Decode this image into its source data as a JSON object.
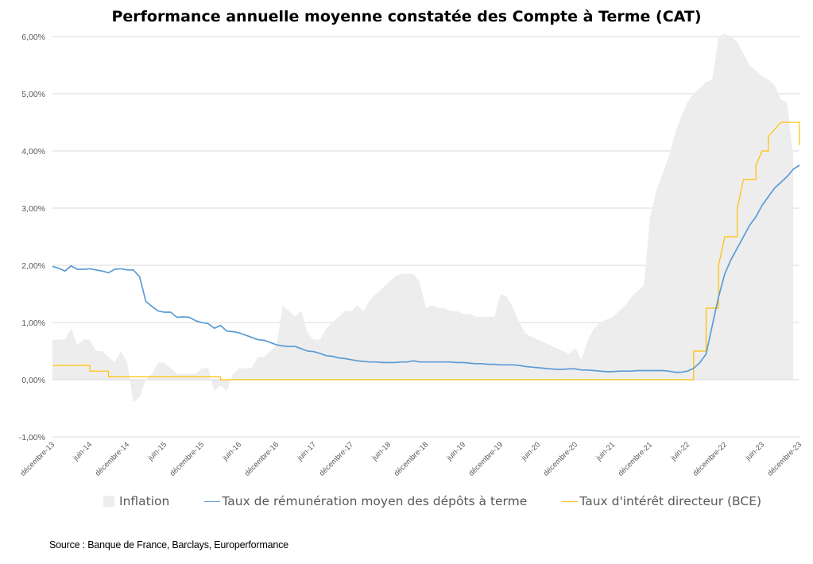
{
  "chart_data": {
    "type": "line",
    "title": "Performance annuelle moyenne constatée des Compte à Terme (CAT)",
    "xlabel": "",
    "ylabel": "",
    "ylim": [
      -1,
      6
    ],
    "y_ticks": [
      "-1,00%",
      "0,00%",
      "1,00%",
      "2,00%",
      "3,00%",
      "4,00%",
      "5,00%",
      "6,00%"
    ],
    "x_range": [
      "2013-12",
      "2023-12"
    ],
    "x_ticks": [
      {
        "label": "décembre-13",
        "date": "2013-12"
      },
      {
        "label": "juin-14",
        "date": "2014-06"
      },
      {
        "label": "décembre-14",
        "date": "2014-12"
      },
      {
        "label": "juin-15",
        "date": "2015-06"
      },
      {
        "label": "décembre-15",
        "date": "2015-12"
      },
      {
        "label": "juin-16",
        "date": "2016-06"
      },
      {
        "label": "décembre-16",
        "date": "2016-12"
      },
      {
        "label": "juin-17",
        "date": "2017-06"
      },
      {
        "label": "décembre-17",
        "date": "2017-12"
      },
      {
        "label": "juin-18",
        "date": "2018-06"
      },
      {
        "label": "décembre-18",
        "date": "2018-12"
      },
      {
        "label": "juin-19",
        "date": "2019-06"
      },
      {
        "label": "décembre-19",
        "date": "2019-12"
      },
      {
        "label": "juin-20",
        "date": "2020-06"
      },
      {
        "label": "décembre-20",
        "date": "2020-12"
      },
      {
        "label": "juin-21",
        "date": "2021-06"
      },
      {
        "label": "décembre-21",
        "date": "2021-12"
      },
      {
        "label": "juin-22",
        "date": "2022-06"
      },
      {
        "label": "décembre-22",
        "date": "2022-12"
      },
      {
        "label": "juin-23",
        "date": "2023-06"
      },
      {
        "label": "décembre-23",
        "date": "2023-12"
      }
    ],
    "grid": "horizontal",
    "legend_position": "bottom",
    "series": [
      {
        "name": "Inflation",
        "type": "area",
        "color": "#ededed",
        "points": [
          [
            "2013-12",
            0.7
          ],
          [
            "2014-02",
            0.7
          ],
          [
            "2014-03",
            0.9
          ],
          [
            "2014-04",
            0.6
          ],
          [
            "2014-05",
            0.7
          ],
          [
            "2014-06",
            0.7
          ],
          [
            "2014-07",
            0.5
          ],
          [
            "2014-08",
            0.5
          ],
          [
            "2014-10",
            0.3
          ],
          [
            "2014-11",
            0.5
          ],
          [
            "2014-12",
            0.3
          ],
          [
            "2015-01",
            -0.4
          ],
          [
            "2015-02",
            -0.3
          ],
          [
            "2015-03",
            0.0
          ],
          [
            "2015-04",
            0.1
          ],
          [
            "2015-05",
            0.3
          ],
          [
            "2015-06",
            0.3
          ],
          [
            "2015-07",
            0.2
          ],
          [
            "2015-08",
            0.1
          ],
          [
            "2015-09",
            0.1
          ],
          [
            "2015-10",
            0.1
          ],
          [
            "2015-11",
            0.1
          ],
          [
            "2015-12",
            0.2
          ],
          [
            "2016-01",
            0.2
          ],
          [
            "2016-02",
            -0.2
          ],
          [
            "2016-03",
            -0.1
          ],
          [
            "2016-04",
            -0.2
          ],
          [
            "2016-05",
            0.1
          ],
          [
            "2016-06",
            0.2
          ],
          [
            "2016-07",
            0.2
          ],
          [
            "2016-08",
            0.2
          ],
          [
            "2016-09",
            0.4
          ],
          [
            "2016-10",
            0.4
          ],
          [
            "2016-11",
            0.5
          ],
          [
            "2016-12",
            0.6
          ],
          [
            "2017-01",
            1.3
          ],
          [
            "2017-02",
            1.2
          ],
          [
            "2017-03",
            1.1
          ],
          [
            "2017-04",
            1.2
          ],
          [
            "2017-05",
            0.8
          ],
          [
            "2017-06",
            0.7
          ],
          [
            "2017-07",
            0.7
          ],
          [
            "2017-08",
            0.9
          ],
          [
            "2017-09",
            1.0
          ],
          [
            "2017-10",
            1.1
          ],
          [
            "2017-11",
            1.2
          ],
          [
            "2017-12",
            1.2
          ],
          [
            "2018-01",
            1.3
          ],
          [
            "2018-02",
            1.2
          ],
          [
            "2018-03",
            1.4
          ],
          [
            "2018-04",
            1.5
          ],
          [
            "2018-05",
            1.6
          ],
          [
            "2018-06",
            1.7
          ],
          [
            "2018-07",
            1.8
          ],
          [
            "2018-08",
            1.85
          ],
          [
            "2018-09",
            1.85
          ],
          [
            "2018-10",
            1.85
          ],
          [
            "2018-11",
            1.7
          ],
          [
            "2018-12",
            1.25
          ],
          [
            "2019-01",
            1.3
          ],
          [
            "2019-02",
            1.25
          ],
          [
            "2019-03",
            1.25
          ],
          [
            "2019-04",
            1.2
          ],
          [
            "2019-05",
            1.2
          ],
          [
            "2019-06",
            1.15
          ],
          [
            "2019-07",
            1.15
          ],
          [
            "2019-08",
            1.1
          ],
          [
            "2019-09",
            1.1
          ],
          [
            "2019-10",
            1.1
          ],
          [
            "2019-11",
            1.1
          ],
          [
            "2019-12",
            1.5
          ],
          [
            "2020-01",
            1.45
          ],
          [
            "2020-02",
            1.25
          ],
          [
            "2020-03",
            1.0
          ],
          [
            "2020-04",
            0.8
          ],
          [
            "2020-05",
            0.75
          ],
          [
            "2020-06",
            0.7
          ],
          [
            "2020-07",
            0.65
          ],
          [
            "2020-08",
            0.6
          ],
          [
            "2020-09",
            0.55
          ],
          [
            "2020-10",
            0.5
          ],
          [
            "2020-11",
            0.45
          ],
          [
            "2020-12",
            0.55
          ],
          [
            "2021-01",
            0.35
          ],
          [
            "2021-02",
            0.7
          ],
          [
            "2021-03",
            0.9
          ],
          [
            "2021-04",
            1.0
          ],
          [
            "2021-05",
            1.05
          ],
          [
            "2021-06",
            1.1
          ],
          [
            "2021-07",
            1.2
          ],
          [
            "2021-08",
            1.3
          ],
          [
            "2021-09",
            1.45
          ],
          [
            "2021-10",
            1.55
          ],
          [
            "2021-11",
            1.65
          ],
          [
            "2021-12",
            2.85
          ],
          [
            "2022-01",
            3.3
          ],
          [
            "2022-02",
            3.6
          ],
          [
            "2022-03",
            3.9
          ],
          [
            "2022-04",
            4.3
          ],
          [
            "2022-05",
            4.6
          ],
          [
            "2022-06",
            4.85
          ],
          [
            "2022-07",
            5.0
          ],
          [
            "2022-08",
            5.1
          ],
          [
            "2022-09",
            5.2
          ],
          [
            "2022-10",
            5.25
          ],
          [
            "2022-11",
            6.0
          ],
          [
            "2022-12",
            6.05
          ],
          [
            "2023-01",
            6.0
          ],
          [
            "2023-02",
            5.9
          ],
          [
            "2023-03",
            5.7
          ],
          [
            "2023-04",
            5.5
          ],
          [
            "2023-05",
            5.4
          ],
          [
            "2023-06",
            5.3
          ],
          [
            "2023-07",
            5.25
          ],
          [
            "2023-08",
            5.15
          ],
          [
            "2023-09",
            4.9
          ],
          [
            "2023-10",
            4.85
          ],
          [
            "2023-11",
            3.9
          ]
        ]
      },
      {
        "name": "Taux de rémunération moyen des dépôts à terme",
        "type": "line",
        "color": "#5b9bd5",
        "points": [
          [
            "2013-12",
            1.98
          ],
          [
            "2014-01",
            1.95
          ],
          [
            "2014-02",
            1.9
          ],
          [
            "2014-03",
            1.99
          ],
          [
            "2014-04",
            1.93
          ],
          [
            "2014-05",
            1.93
          ],
          [
            "2014-06",
            1.94
          ],
          [
            "2014-07",
            1.92
          ],
          [
            "2014-08",
            1.9
          ],
          [
            "2014-09",
            1.87
          ],
          [
            "2014-10",
            1.93
          ],
          [
            "2014-11",
            1.94
          ],
          [
            "2014-12",
            1.92
          ],
          [
            "2015-01",
            1.92
          ],
          [
            "2015-02",
            1.8
          ],
          [
            "2015-03",
            1.37
          ],
          [
            "2015-04",
            1.28
          ],
          [
            "2015-05",
            1.2
          ],
          [
            "2015-06",
            1.18
          ],
          [
            "2015-07",
            1.18
          ],
          [
            "2015-08",
            1.09
          ],
          [
            "2015-09",
            1.1
          ],
          [
            "2015-10",
            1.09
          ],
          [
            "2015-11",
            1.03
          ],
          [
            "2015-12",
            1.0
          ],
          [
            "2016-01",
            0.98
          ],
          [
            "2016-02",
            0.9
          ],
          [
            "2016-03",
            0.95
          ],
          [
            "2016-04",
            0.85
          ],
          [
            "2016-05",
            0.84
          ],
          [
            "2016-06",
            0.82
          ],
          [
            "2016-07",
            0.78
          ],
          [
            "2016-08",
            0.74
          ],
          [
            "2016-09",
            0.7
          ],
          [
            "2016-10",
            0.69
          ],
          [
            "2016-11",
            0.65
          ],
          [
            "2016-12",
            0.61
          ],
          [
            "2017-01",
            0.59
          ],
          [
            "2017-02",
            0.58
          ],
          [
            "2017-03",
            0.58
          ],
          [
            "2017-04",
            0.54
          ],
          [
            "2017-05",
            0.5
          ],
          [
            "2017-06",
            0.49
          ],
          [
            "2017-07",
            0.46
          ],
          [
            "2017-08",
            0.42
          ],
          [
            "2017-09",
            0.41
          ],
          [
            "2017-10",
            0.38
          ],
          [
            "2017-11",
            0.37
          ],
          [
            "2017-12",
            0.35
          ],
          [
            "2018-01",
            0.33
          ],
          [
            "2018-02",
            0.32
          ],
          [
            "2018-03",
            0.31
          ],
          [
            "2018-04",
            0.31
          ],
          [
            "2018-05",
            0.3
          ],
          [
            "2018-06",
            0.3
          ],
          [
            "2018-07",
            0.3
          ],
          [
            "2018-08",
            0.31
          ],
          [
            "2018-09",
            0.31
          ],
          [
            "2018-10",
            0.33
          ],
          [
            "2018-11",
            0.31
          ],
          [
            "2018-12",
            0.31
          ],
          [
            "2019-01",
            0.31
          ],
          [
            "2019-02",
            0.31
          ],
          [
            "2019-03",
            0.31
          ],
          [
            "2019-04",
            0.31
          ],
          [
            "2019-05",
            0.3
          ],
          [
            "2019-06",
            0.3
          ],
          [
            "2019-07",
            0.29
          ],
          [
            "2019-08",
            0.28
          ],
          [
            "2019-09",
            0.28
          ],
          [
            "2019-10",
            0.27
          ],
          [
            "2019-11",
            0.27
          ],
          [
            "2019-12",
            0.26
          ],
          [
            "2020-01",
            0.26
          ],
          [
            "2020-02",
            0.26
          ],
          [
            "2020-03",
            0.25
          ],
          [
            "2020-04",
            0.23
          ],
          [
            "2020-05",
            0.22
          ],
          [
            "2020-06",
            0.21
          ],
          [
            "2020-07",
            0.2
          ],
          [
            "2020-08",
            0.19
          ],
          [
            "2020-09",
            0.18
          ],
          [
            "2020-10",
            0.18
          ],
          [
            "2020-11",
            0.19
          ],
          [
            "2020-12",
            0.19
          ],
          [
            "2021-01",
            0.17
          ],
          [
            "2021-02",
            0.17
          ],
          [
            "2021-03",
            0.16
          ],
          [
            "2021-04",
            0.15
          ],
          [
            "2021-05",
            0.14
          ],
          [
            "2021-06",
            0.14
          ],
          [
            "2021-07",
            0.15
          ],
          [
            "2021-08",
            0.15
          ],
          [
            "2021-09",
            0.15
          ],
          [
            "2021-10",
            0.16
          ],
          [
            "2021-11",
            0.16
          ],
          [
            "2021-12",
            0.16
          ],
          [
            "2022-01",
            0.16
          ],
          [
            "2022-02",
            0.16
          ],
          [
            "2022-03",
            0.15
          ],
          [
            "2022-04",
            0.13
          ],
          [
            "2022-05",
            0.13
          ],
          [
            "2022-06",
            0.15
          ],
          [
            "2022-07",
            0.2
          ],
          [
            "2022-08",
            0.3
          ],
          [
            "2022-09",
            0.45
          ],
          [
            "2022-10",
            0.95
          ],
          [
            "2022-11",
            1.45
          ],
          [
            "2022-12",
            1.85
          ],
          [
            "2023-01",
            2.1
          ],
          [
            "2023-02",
            2.3
          ],
          [
            "2023-03",
            2.5
          ],
          [
            "2023-04",
            2.7
          ],
          [
            "2023-05",
            2.85
          ],
          [
            "2023-06",
            3.05
          ],
          [
            "2023-07",
            3.2
          ],
          [
            "2023-08",
            3.35
          ],
          [
            "2023-09",
            3.45
          ],
          [
            "2023-10",
            3.55
          ],
          [
            "2023-11",
            3.68
          ],
          [
            "2023-12",
            3.75
          ]
        ]
      },
      {
        "name": "Taux d'intérêt directeur (BCE)",
        "type": "step",
        "color": "#ffc000",
        "points": [
          [
            "2013-12",
            0.25
          ],
          [
            "2014-06",
            0.25
          ],
          [
            "2014-06",
            0.15
          ],
          [
            "2014-09",
            0.15
          ],
          [
            "2014-09",
            0.05
          ],
          [
            "2016-03",
            0.05
          ],
          [
            "2016-03",
            0.0
          ],
          [
            "2022-07",
            0.0
          ],
          [
            "2022-07",
            0.5
          ],
          [
            "2022-09",
            0.5
          ],
          [
            "2022-09",
            1.25
          ],
          [
            "2022-11",
            1.25
          ],
          [
            "2022-11",
            2.0
          ],
          [
            "2022-12",
            2.5
          ],
          [
            "2023-02",
            2.5
          ],
          [
            "2023-02",
            3.0
          ],
          [
            "2023-03",
            3.5
          ],
          [
            "2023-05",
            3.5
          ],
          [
            "2023-05",
            3.75
          ],
          [
            "2023-06",
            4.0
          ],
          [
            "2023-07",
            4.0
          ],
          [
            "2023-07",
            4.25
          ],
          [
            "2023-09",
            4.5
          ],
          [
            "2023-12",
            4.5
          ],
          [
            "2023-12",
            4.1
          ]
        ]
      }
    ]
  },
  "source": "Source : Banque de France, Barclays, Europerformance"
}
